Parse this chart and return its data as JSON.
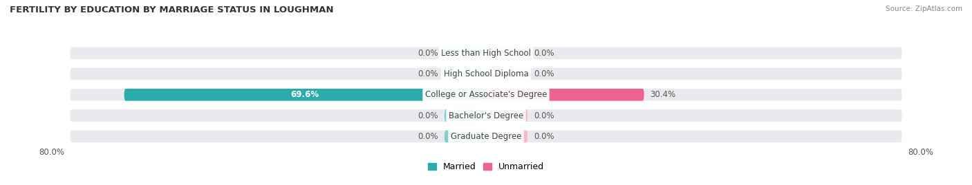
{
  "title": "FERTILITY BY EDUCATION BY MARRIAGE STATUS IN LOUGHMAN",
  "source": "Source: ZipAtlas.com",
  "categories": [
    "Less than High School",
    "High School Diploma",
    "College or Associate's Degree",
    "Bachelor's Degree",
    "Graduate Degree"
  ],
  "married_values": [
    0.0,
    0.0,
    69.6,
    0.0,
    0.0
  ],
  "unmarried_values": [
    0.0,
    0.0,
    30.4,
    0.0,
    0.0
  ],
  "married_color_light": "#7DCFCF",
  "married_color_dark": "#2AACAC",
  "unmarried_color_light": "#F9B8C8",
  "unmarried_color_dark": "#F06090",
  "bar_bg_color": "#EAEAEE",
  "max_value": 80.0,
  "zero_bar_size": 8.0,
  "title_fontsize": 9.5,
  "source_fontsize": 7.5,
  "cat_label_fontsize": 8.5,
  "val_label_fontsize": 8.5,
  "legend_fontsize": 9,
  "bar_height": 0.58,
  "bar_gap": 0.18,
  "background_color": "#FFFFFF",
  "axis_label_color": "#555555",
  "cat_label_color": "#444444",
  "val_label_color_dark": "#FFFFFF",
  "val_label_color_light": "#555555"
}
